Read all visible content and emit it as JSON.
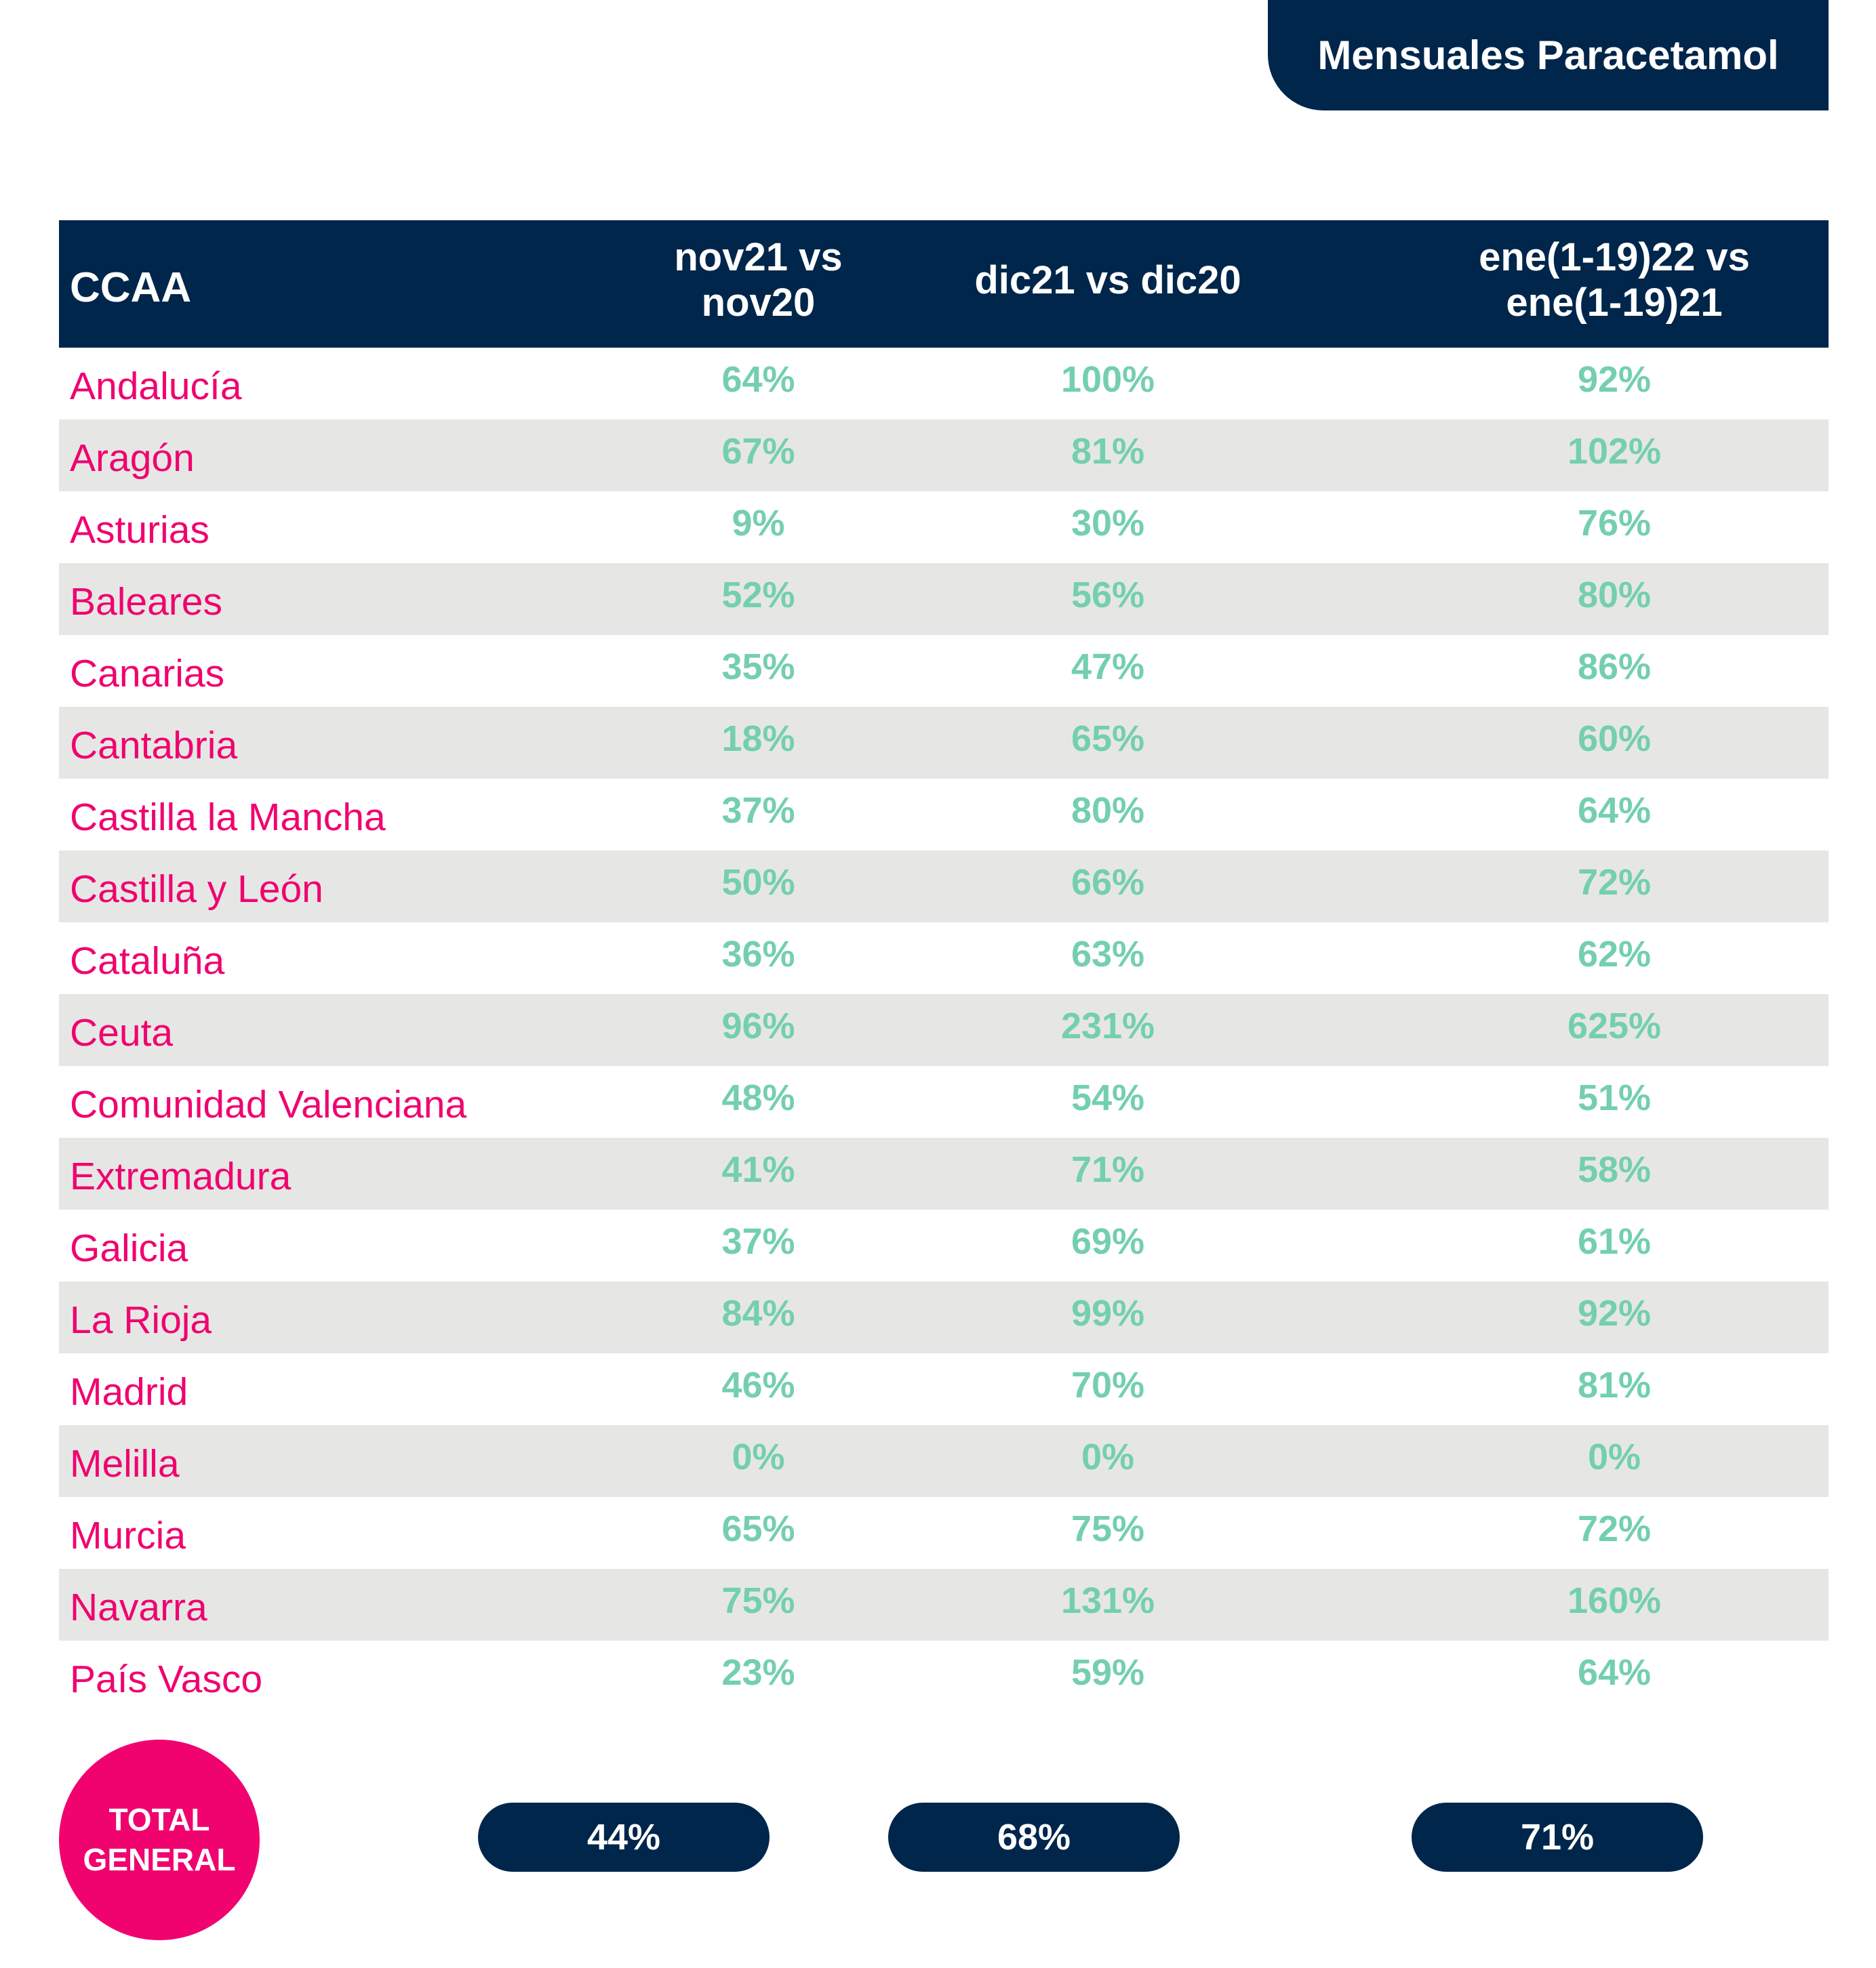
{
  "title": "Mensuales Paracetamol",
  "chart_data": {
    "type": "table",
    "columns": [
      "CCAA",
      "nov21 vs nov20",
      "dic21 vs dic20",
      "ene(1-19)22 vs ene(1-19)21"
    ],
    "rows": [
      [
        "Andalucía",
        "64%",
        "100%",
        "92%"
      ],
      [
        "Aragón",
        "67%",
        "81%",
        "102%"
      ],
      [
        "Asturias",
        "9%",
        "30%",
        "76%"
      ],
      [
        "Baleares",
        "52%",
        "56%",
        "80%"
      ],
      [
        "Canarias",
        "35%",
        "47%",
        "86%"
      ],
      [
        "Cantabria",
        "18%",
        "65%",
        "60%"
      ],
      [
        "Castilla la Mancha",
        "37%",
        "80%",
        "64%"
      ],
      [
        "Castilla y León",
        "50%",
        "66%",
        "72%"
      ],
      [
        "Cataluña",
        "36%",
        "63%",
        "62%"
      ],
      [
        "Ceuta",
        "96%",
        "231%",
        "625%"
      ],
      [
        "Comunidad Valenciana",
        "48%",
        "54%",
        "51%"
      ],
      [
        "Extremadura",
        "41%",
        "71%",
        "58%"
      ],
      [
        "Galicia",
        "37%",
        "69%",
        "61%"
      ],
      [
        "La Rioja",
        "84%",
        "99%",
        "92%"
      ],
      [
        "Madrid",
        "46%",
        "70%",
        "81%"
      ],
      [
        "Melilla",
        "0%",
        "0%",
        "0%"
      ],
      [
        "Murcia",
        "65%",
        "75%",
        "72%"
      ],
      [
        "Navarra",
        "75%",
        "131%",
        "160%"
      ],
      [
        "País Vasco",
        "23%",
        "59%",
        "64%"
      ]
    ],
    "total": {
      "label_line1": "TOTAL",
      "label_line2": "GENERAL",
      "values": [
        "44%",
        "68%",
        "71%"
      ]
    }
  },
  "colors": {
    "navy": "#00264b",
    "pink": "#f0036f",
    "mint": "#74cfaf",
    "row_alt": "#e6e7e5"
  }
}
